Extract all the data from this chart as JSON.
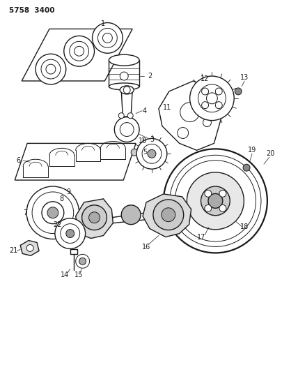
{
  "title": "5758  3400",
  "bg_color": "#ffffff",
  "line_color": "#1a1a1a",
  "fig_width": 4.28,
  "fig_height": 5.33,
  "dpi": 100
}
